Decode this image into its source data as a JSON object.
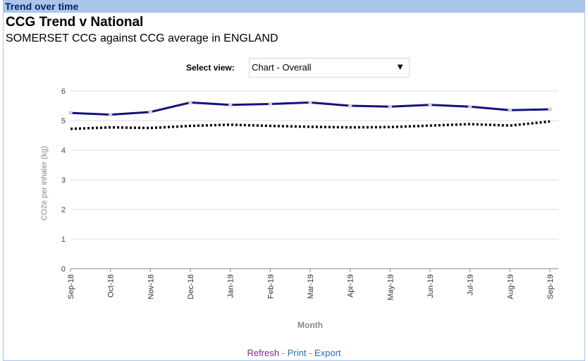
{
  "panel": {
    "header": "Trend over time"
  },
  "title": "CCG Trend v National",
  "subtitle": "SOMERSET CCG against CCG average in ENGLAND",
  "select": {
    "label": "Select view:",
    "value": "Chart - Overall"
  },
  "footer": {
    "refresh": "Refresh",
    "print": "Print",
    "export": "Export",
    "separator": "-"
  },
  "colors": {
    "ccg_line": "#13127e",
    "national_line": "#000000",
    "marker": "#d0d0d0",
    "grid": "#dcdcdc",
    "header_bar": "#a9c7ea"
  },
  "icons": {
    "dropdown": "caret-down-icon"
  },
  "chart_data": {
    "type": "line",
    "title": "",
    "xlabel": "Month",
    "ylabel": "CO2e per inhaler (kg)",
    "ylim": [
      0,
      6
    ],
    "yticks": [
      "0",
      "1",
      "2",
      "3",
      "4",
      "5",
      "6"
    ],
    "grid": true,
    "categories": [
      "Sep-18",
      "Oct-18",
      "Nov-18",
      "Dec-18",
      "Jan-19",
      "Feb-19",
      "Mar-19",
      "Apr-19",
      "May-19",
      "Jun-19",
      "Jul-19",
      "Aug-19",
      "Sep-19"
    ],
    "series": [
      {
        "values": [
          5.26,
          5.2,
          5.29,
          5.61,
          5.53,
          5.56,
          5.61,
          5.5,
          5.47,
          5.53,
          5.47,
          5.35,
          5.38
        ]
      },
      {
        "values": [
          4.72,
          4.77,
          4.75,
          4.82,
          4.86,
          4.82,
          4.79,
          4.77,
          4.78,
          4.83,
          4.88,
          4.83,
          4.97
        ]
      }
    ]
  }
}
